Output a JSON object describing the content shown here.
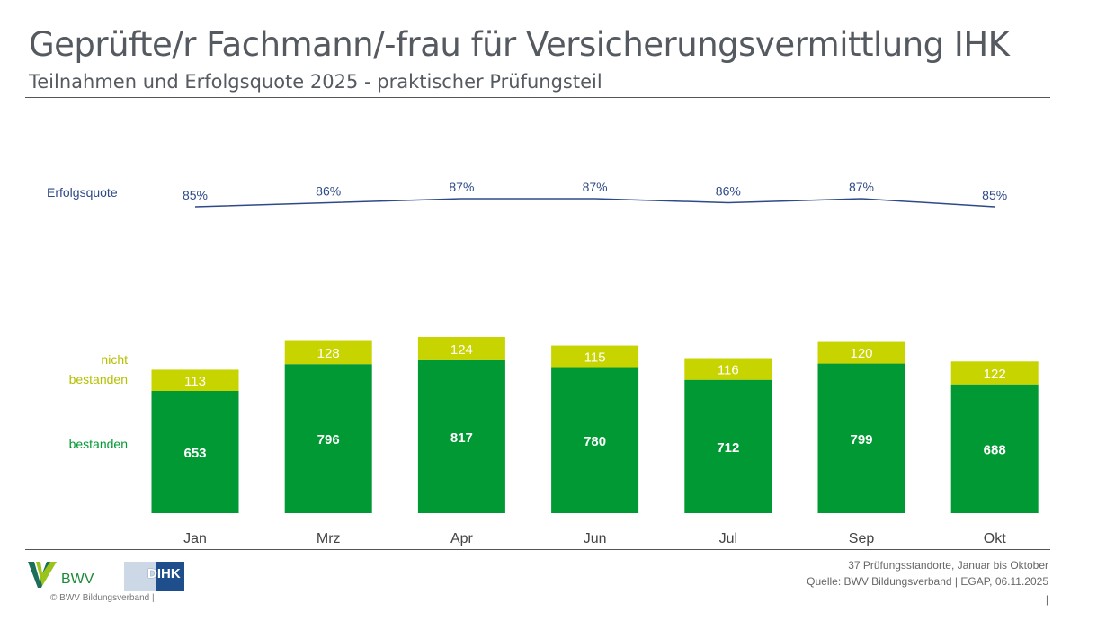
{
  "header": {
    "title": "Geprüfte/r Fachmann/-frau für Versicherungsvermittlung IHK",
    "subtitle": "Teilnahmen und Erfolgsquote 2025 - praktischer Prüfungsteil"
  },
  "chart_data": {
    "type": "bar",
    "stacked": true,
    "categories": [
      "Jan",
      "Mrz",
      "Apr",
      "Jun",
      "Jul",
      "Sep",
      "Okt"
    ],
    "series": [
      {
        "name": "bestanden",
        "values": [
          653,
          796,
          817,
          780,
          712,
          799,
          688
        ],
        "color": "#009933"
      },
      {
        "name": "nicht bestanden",
        "values": [
          113,
          128,
          124,
          115,
          116,
          120,
          122
        ],
        "color": "#c8d400"
      }
    ],
    "line": {
      "name": "Erfolgsquote",
      "values": [
        85,
        86,
        87,
        87,
        86,
        87,
        85
      ],
      "labels": [
        "85%",
        "86%",
        "87%",
        "87%",
        "86%",
        "87%",
        "85%"
      ],
      "color": "#2e4a87"
    },
    "legend_labels": {
      "line": "Erfolgsquote",
      "top": "nicht bestanden",
      "top_1": "nicht",
      "top_2": "bestanden",
      "bottom": "bestanden"
    }
  },
  "footer": {
    "note1": "37 Prüfungsstandorte, Januar bis Oktober",
    "note2": "Quelle: BWV Bildungsverband | EGAP, 06.11.2025",
    "page": "|",
    "copyright": "©  BWV Bildungsverband  |",
    "logo_bwv": "BWV",
    "logo_dihk": "DIHK"
  }
}
